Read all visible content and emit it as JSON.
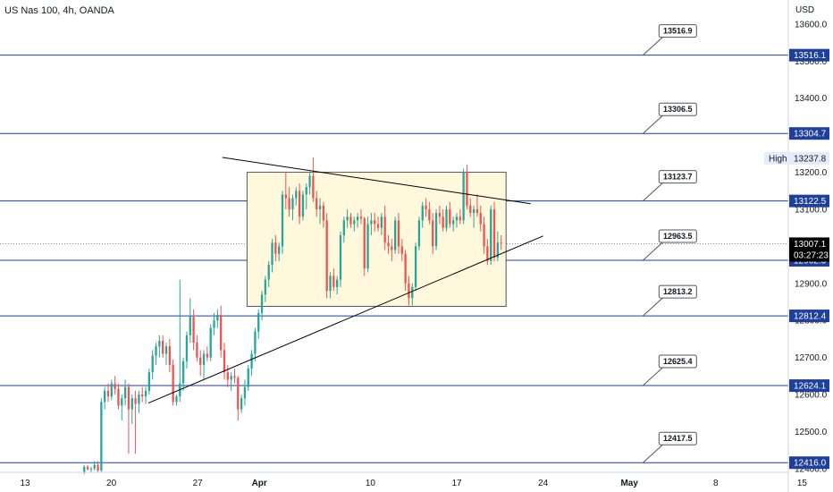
{
  "header": {
    "title": "US Nas 100, 4h, OANDA"
  },
  "colors": {
    "up": "#26a69a",
    "down": "#ef5350",
    "level_line": "#1e3f9a",
    "trend_line": "#000000",
    "rect_fill": "#fff8dc",
    "rect_border": "#555555",
    "price_tag_dark": "#000000",
    "high_tag_bg": "#e3ecf7"
  },
  "axis": {
    "currency": "USD",
    "high_label": "High",
    "high_value": "13237.8",
    "current_price": "13007.1",
    "countdown": "03:27:23"
  },
  "chart_data": {
    "type": "candlestick",
    "title": "US Nas 100, 4h, OANDA",
    "ylim": [
      12390,
      13665
    ],
    "y_ticks": [
      12400.0,
      12500.0,
      12600.0,
      12700.0,
      12800.0,
      12900.0,
      13000.0,
      13100.0,
      13200.0,
      13300.0,
      13400.0,
      13500.0,
      13600.0
    ],
    "x_ticks": [
      "13",
      "20",
      "27",
      "Apr",
      "10",
      "17",
      "24",
      "May",
      "8",
      "15"
    ],
    "horizontal_levels": [
      {
        "label": "13516.9",
        "axis_tag": "13516.1",
        "price": 13516.1
      },
      {
        "label": "13306.5",
        "axis_tag": "13304.7",
        "price": 13304.7
      },
      {
        "label": "13123.7",
        "axis_tag": "13122.5",
        "price": 13122.5
      },
      {
        "label": "12963.5",
        "axis_tag": "12962.3",
        "price": 12962.3
      },
      {
        "label": "12813.2",
        "axis_tag": "12812.4",
        "price": 12812.4
      },
      {
        "label": "12625.4",
        "axis_tag": "12624.1",
        "price": 12624.1
      },
      {
        "label": "12417.5",
        "axis_tag": "12416.0",
        "price": 12416.0
      }
    ],
    "range_box": {
      "start": "Mar 31",
      "end": "Apr 21",
      "high": 13200,
      "low": 12838
    },
    "trendlines": [
      {
        "name": "descending",
        "from": {
          "date": "Mar 29",
          "price": 13240
        },
        "to": {
          "date": "Apr 23",
          "price": 13115
        }
      },
      {
        "name": "ascending",
        "from": {
          "date": "Mar 23",
          "price": 12577
        },
        "to": {
          "date": "Apr 24",
          "price": 13028
        }
      }
    ],
    "candles": [
      {
        "o": 12390,
        "h": 12410,
        "l": 12385,
        "c": 12405
      },
      {
        "o": 12405,
        "h": 12410,
        "l": 12395,
        "c": 12398
      },
      {
        "o": 12398,
        "h": 12405,
        "l": 12390,
        "c": 12400
      },
      {
        "o": 12400,
        "h": 12420,
        "l": 12395,
        "c": 12410
      },
      {
        "o": 12410,
        "h": 12420,
        "l": 12390,
        "c": 12395
      },
      {
        "o": 12395,
        "h": 12590,
        "l": 12390,
        "c": 12580
      },
      {
        "o": 12580,
        "h": 12620,
        "l": 12560,
        "c": 12610
      },
      {
        "o": 12610,
        "h": 12630,
        "l": 12580,
        "c": 12595
      },
      {
        "o": 12595,
        "h": 12640,
        "l": 12585,
        "c": 12630
      },
      {
        "o": 12630,
        "h": 12650,
        "l": 12600,
        "c": 12615
      },
      {
        "o": 12615,
        "h": 12630,
        "l": 12560,
        "c": 12570
      },
      {
        "o": 12570,
        "h": 12600,
        "l": 12530,
        "c": 12590
      },
      {
        "o": 12590,
        "h": 12640,
        "l": 12570,
        "c": 12620
      },
      {
        "o": 12620,
        "h": 12630,
        "l": 12440,
        "c": 12560
      },
      {
        "o": 12560,
        "h": 12600,
        "l": 12520,
        "c": 12590
      },
      {
        "o": 12590,
        "h": 12610,
        "l": 12440,
        "c": 12575
      },
      {
        "o": 12575,
        "h": 12610,
        "l": 12550,
        "c": 12600
      },
      {
        "o": 12600,
        "h": 12620,
        "l": 12580,
        "c": 12595
      },
      {
        "o": 12595,
        "h": 12620,
        "l": 12575,
        "c": 12610
      },
      {
        "o": 12610,
        "h": 12670,
        "l": 12600,
        "c": 12660
      },
      {
        "o": 12660,
        "h": 12720,
        "l": 12640,
        "c": 12705
      },
      {
        "o": 12705,
        "h": 12740,
        "l": 12680,
        "c": 12730
      },
      {
        "o": 12730,
        "h": 12760,
        "l": 12700,
        "c": 12745
      },
      {
        "o": 12745,
        "h": 12760,
        "l": 12700,
        "c": 12710
      },
      {
        "o": 12710,
        "h": 12740,
        "l": 12680,
        "c": 12730
      },
      {
        "o": 12730,
        "h": 12750,
        "l": 12660,
        "c": 12680
      },
      {
        "o": 12680,
        "h": 12695,
        "l": 12570,
        "c": 12580
      },
      {
        "o": 12580,
        "h": 12600,
        "l": 12570,
        "c": 12595
      },
      {
        "o": 12595,
        "h": 12910,
        "l": 12580,
        "c": 12630
      },
      {
        "o": 12630,
        "h": 12700,
        "l": 12610,
        "c": 12690
      },
      {
        "o": 12690,
        "h": 12770,
        "l": 12670,
        "c": 12760
      },
      {
        "o": 12760,
        "h": 12860,
        "l": 12740,
        "c": 12810
      },
      {
        "o": 12810,
        "h": 12830,
        "l": 12720,
        "c": 12740
      },
      {
        "o": 12740,
        "h": 12760,
        "l": 12690,
        "c": 12700
      },
      {
        "o": 12700,
        "h": 12720,
        "l": 12650,
        "c": 12680
      },
      {
        "o": 12680,
        "h": 12720,
        "l": 12640,
        "c": 12710
      },
      {
        "o": 12710,
        "h": 12730,
        "l": 12690,
        "c": 12700
      },
      {
        "o": 12700,
        "h": 12790,
        "l": 12690,
        "c": 12780
      },
      {
        "o": 12780,
        "h": 12820,
        "l": 12760,
        "c": 12800
      },
      {
        "o": 12800,
        "h": 12830,
        "l": 12780,
        "c": 12815
      },
      {
        "o": 12815,
        "h": 12840,
        "l": 12700,
        "c": 12720
      },
      {
        "o": 12720,
        "h": 12740,
        "l": 12640,
        "c": 12660
      },
      {
        "o": 12660,
        "h": 12680,
        "l": 12620,
        "c": 12640
      },
      {
        "o": 12640,
        "h": 12660,
        "l": 12610,
        "c": 12650
      },
      {
        "o": 12650,
        "h": 12670,
        "l": 12630,
        "c": 12645
      },
      {
        "o": 12645,
        "h": 12650,
        "l": 12530,
        "c": 12560
      },
      {
        "o": 12560,
        "h": 12600,
        "l": 12550,
        "c": 12590
      },
      {
        "o": 12590,
        "h": 12640,
        "l": 12570,
        "c": 12620
      },
      {
        "o": 12620,
        "h": 12680,
        "l": 12610,
        "c": 12670
      },
      {
        "o": 12670,
        "h": 12720,
        "l": 12650,
        "c": 12710
      },
      {
        "o": 12710,
        "h": 12780,
        "l": 12690,
        "c": 12770
      },
      {
        "o": 12770,
        "h": 12830,
        "l": 12750,
        "c": 12820
      },
      {
        "o": 12820,
        "h": 12880,
        "l": 12800,
        "c": 12870
      },
      {
        "o": 12870,
        "h": 12920,
        "l": 12850,
        "c": 12910
      },
      {
        "o": 12910,
        "h": 12960,
        "l": 12890,
        "c": 12950
      },
      {
        "o": 12950,
        "h": 13020,
        "l": 12930,
        "c": 13010
      },
      {
        "o": 13010,
        "h": 13030,
        "l": 12960,
        "c": 12980
      },
      {
        "o": 12980,
        "h": 13010,
        "l": 12960,
        "c": 13000
      },
      {
        "o": 13000,
        "h": 13150,
        "l": 12980,
        "c": 13140
      },
      {
        "o": 13140,
        "h": 13200,
        "l": 13100,
        "c": 13130
      },
      {
        "o": 13130,
        "h": 13160,
        "l": 13080,
        "c": 13100
      },
      {
        "o": 13100,
        "h": 13140,
        "l": 13070,
        "c": 13130
      },
      {
        "o": 13130,
        "h": 13160,
        "l": 13110,
        "c": 13150
      },
      {
        "o": 13150,
        "h": 13170,
        "l": 13060,
        "c": 13080
      },
      {
        "o": 13080,
        "h": 13150,
        "l": 13070,
        "c": 13140
      },
      {
        "o": 13140,
        "h": 13170,
        "l": 13100,
        "c": 13160
      },
      {
        "o": 13160,
        "h": 13200,
        "l": 13140,
        "c": 13190
      },
      {
        "o": 13190,
        "h": 13240,
        "l": 13120,
        "c": 13130
      },
      {
        "o": 13130,
        "h": 13150,
        "l": 13080,
        "c": 13100
      },
      {
        "o": 13100,
        "h": 13130,
        "l": 13060,
        "c": 13110
      },
      {
        "o": 13110,
        "h": 13120,
        "l": 13050,
        "c": 13070
      },
      {
        "o": 13070,
        "h": 13090,
        "l": 12860,
        "c": 12880
      },
      {
        "o": 12880,
        "h": 12930,
        "l": 12860,
        "c": 12920
      },
      {
        "o": 12920,
        "h": 12940,
        "l": 12880,
        "c": 12890
      },
      {
        "o": 12890,
        "h": 12920,
        "l": 12870,
        "c": 12910
      },
      {
        "o": 12910,
        "h": 13040,
        "l": 12890,
        "c": 13030
      },
      {
        "o": 13030,
        "h": 13080,
        "l": 13010,
        "c": 13070
      },
      {
        "o": 13070,
        "h": 13100,
        "l": 13050,
        "c": 13080
      },
      {
        "o": 13080,
        "h": 13090,
        "l": 13050,
        "c": 13060
      },
      {
        "o": 13060,
        "h": 13080,
        "l": 13040,
        "c": 13070
      },
      {
        "o": 13070,
        "h": 13090,
        "l": 13050,
        "c": 13080
      },
      {
        "o": 13080,
        "h": 13100,
        "l": 13060,
        "c": 13075
      },
      {
        "o": 13075,
        "h": 13080,
        "l": 12920,
        "c": 12940
      },
      {
        "o": 12940,
        "h": 13080,
        "l": 12930,
        "c": 13060
      },
      {
        "o": 13060,
        "h": 13090,
        "l": 13030,
        "c": 13070
      },
      {
        "o": 13070,
        "h": 13090,
        "l": 13040,
        "c": 13060
      },
      {
        "o": 13060,
        "h": 13080,
        "l": 13040,
        "c": 13050
      },
      {
        "o": 13050,
        "h": 13090,
        "l": 13030,
        "c": 13080
      },
      {
        "o": 13080,
        "h": 13110,
        "l": 12990,
        "c": 13010
      },
      {
        "o": 13010,
        "h": 13030,
        "l": 12980,
        "c": 13000
      },
      {
        "o": 13000,
        "h": 13020,
        "l": 12960,
        "c": 12990
      },
      {
        "o": 12990,
        "h": 13080,
        "l": 12980,
        "c": 13070
      },
      {
        "o": 13070,
        "h": 13090,
        "l": 12980,
        "c": 13000
      },
      {
        "o": 13000,
        "h": 13020,
        "l": 12960,
        "c": 12980
      },
      {
        "o": 12980,
        "h": 12990,
        "l": 12880,
        "c": 12900
      },
      {
        "o": 12900,
        "h": 12920,
        "l": 12840,
        "c": 12860
      },
      {
        "o": 12860,
        "h": 12900,
        "l": 12840,
        "c": 12890
      },
      {
        "o": 12890,
        "h": 13010,
        "l": 12880,
        "c": 13000
      },
      {
        "o": 13000,
        "h": 13080,
        "l": 12990,
        "c": 13070
      },
      {
        "o": 13070,
        "h": 13120,
        "l": 13050,
        "c": 13110
      },
      {
        "o": 13110,
        "h": 13130,
        "l": 13080,
        "c": 13100
      },
      {
        "o": 13100,
        "h": 13120,
        "l": 13060,
        "c": 13070
      },
      {
        "o": 13070,
        "h": 13090,
        "l": 12980,
        "c": 13000
      },
      {
        "o": 13000,
        "h": 13100,
        "l": 12990,
        "c": 13090
      },
      {
        "o": 13090,
        "h": 13110,
        "l": 13060,
        "c": 13080
      },
      {
        "o": 13080,
        "h": 13100,
        "l": 13040,
        "c": 13050
      },
      {
        "o": 13050,
        "h": 13110,
        "l": 13040,
        "c": 13100
      },
      {
        "o": 13100,
        "h": 13120,
        "l": 13050,
        "c": 13060
      },
      {
        "o": 13060,
        "h": 13080,
        "l": 13040,
        "c": 13070
      },
      {
        "o": 13070,
        "h": 13090,
        "l": 13050,
        "c": 13080
      },
      {
        "o": 13080,
        "h": 13100,
        "l": 13060,
        "c": 13070
      },
      {
        "o": 13070,
        "h": 13210,
        "l": 13060,
        "c": 13200
      },
      {
        "o": 13200,
        "h": 13220,
        "l": 13100,
        "c": 13110
      },
      {
        "o": 13110,
        "h": 13130,
        "l": 13080,
        "c": 13090
      },
      {
        "o": 13090,
        "h": 13110,
        "l": 13050,
        "c": 13100
      },
      {
        "o": 13100,
        "h": 13140,
        "l": 13080,
        "c": 13090
      },
      {
        "o": 13090,
        "h": 13110,
        "l": 13040,
        "c": 13060
      },
      {
        "o": 13060,
        "h": 13080,
        "l": 12980,
        "c": 13000
      },
      {
        "o": 13000,
        "h": 13020,
        "l": 12950,
        "c": 12960
      },
      {
        "o": 12960,
        "h": 13110,
        "l": 12950,
        "c": 13100
      },
      {
        "o": 13100,
        "h": 13120,
        "l": 12960,
        "c": 12970
      },
      {
        "o": 12970,
        "h": 13040,
        "l": 12960,
        "c": 13010
      },
      {
        "o": 13010,
        "h": 13030,
        "l": 12990,
        "c": 13007
      }
    ]
  }
}
